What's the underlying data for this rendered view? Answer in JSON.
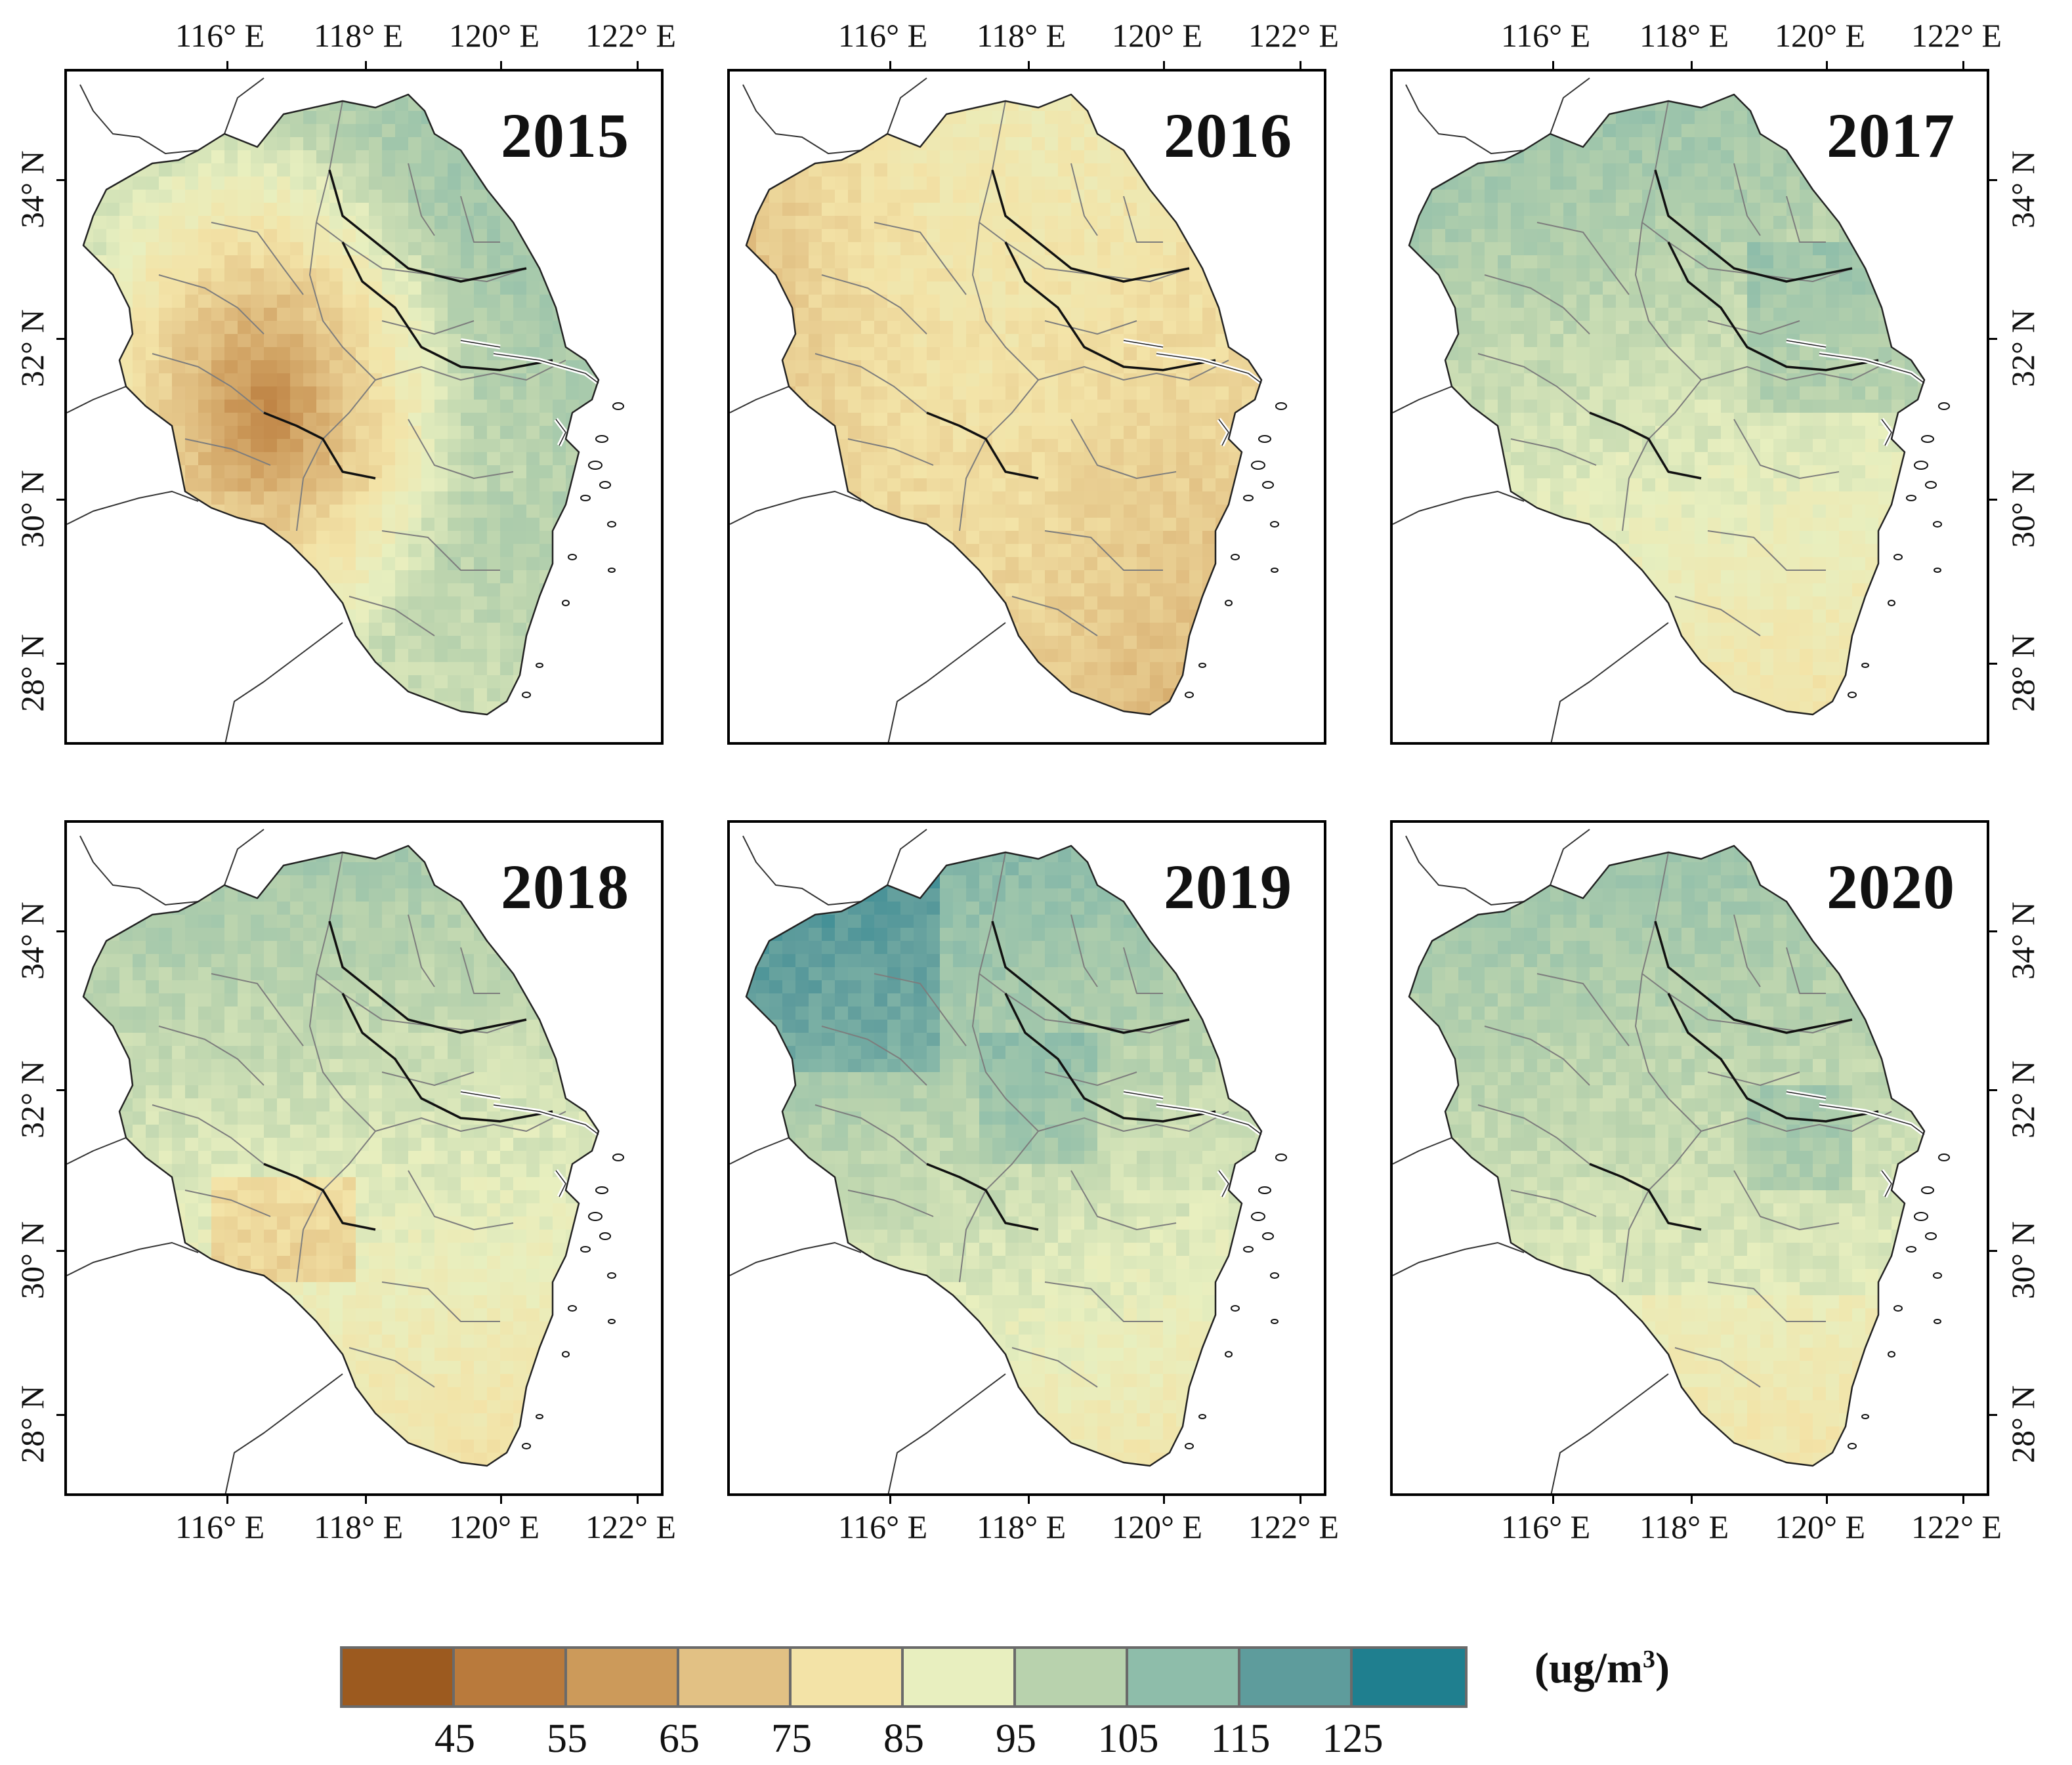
{
  "figure": {
    "panels": [
      {
        "year": "2015",
        "level": 0.22
      },
      {
        "year": "2016",
        "level": 0.42
      },
      {
        "year": "2017",
        "level": 0.62
      },
      {
        "year": "2018",
        "level": 0.6
      },
      {
        "year": "2019",
        "level": 0.72
      },
      {
        "year": "2020",
        "level": 0.66
      }
    ],
    "lon_ticks": [
      "116° E",
      "118° E",
      "120° E",
      "122° E"
    ],
    "lat_ticks": [
      "34° N",
      "32° N",
      "30° N",
      "28° N"
    ]
  },
  "legend": {
    "colors": [
      "#9c5a1f",
      "#b97a3c",
      "#cc9a5a",
      "#e2c184",
      "#f3e3a7",
      "#e8efbf",
      "#b8d2ad",
      "#8ebdaa",
      "#5e9c9c",
      "#1f7f8f"
    ],
    "labels": [
      "45",
      "55",
      "65",
      "75",
      "85",
      "95",
      "105",
      "115",
      "125"
    ],
    "unit_prefix": "(ug/m",
    "unit_sup": "3",
    "unit_suffix": ")"
  }
}
